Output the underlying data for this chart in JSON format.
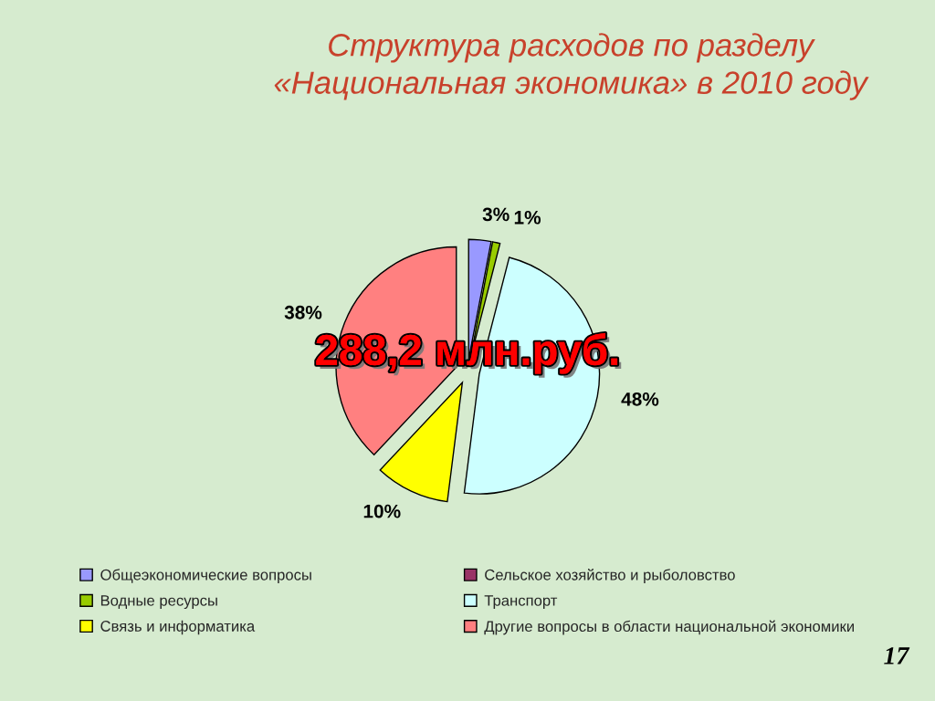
{
  "chart_data": {
    "type": "pie",
    "title": "Структура расходов по разделу\n«Национальная экономика» в 2010 году",
    "categories": [
      "Общеэкономические вопросы",
      "Сельское хозяйство и рыболовство",
      "Водные ресурсы",
      "Транспорт",
      "Связь и информатика",
      "Другие вопросы в области национальной экономики"
    ],
    "values": [
      3,
      0,
      1,
      48,
      10,
      38
    ],
    "value_labels": [
      "3%",
      null,
      "1%",
      "48%",
      "10%",
      "38%"
    ],
    "colors": [
      "#9999ff",
      "#993366",
      "#99cc00",
      "#ccffff",
      "#ffff00",
      "#ff8080"
    ],
    "legend": "bottom",
    "annotations": [
      "288,2 млн.руб.",
      "17"
    ]
  }
}
